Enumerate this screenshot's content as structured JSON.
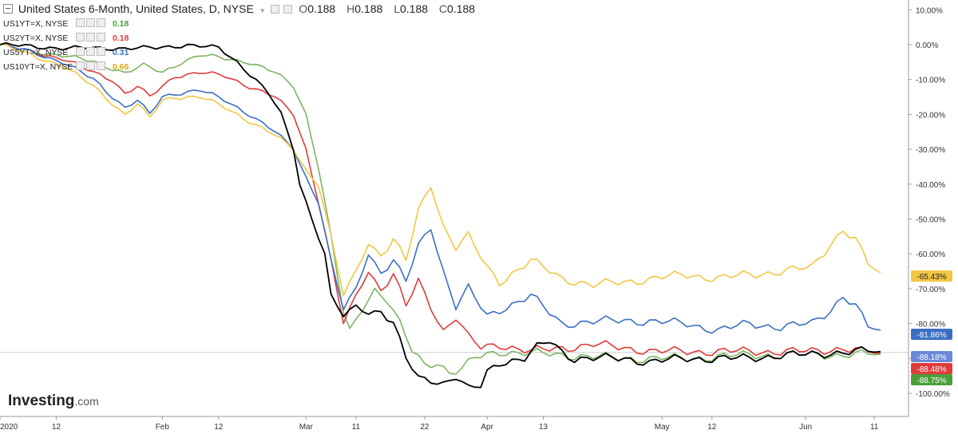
{
  "header": {
    "title": "United States 6-Month, United States, D, NYSE",
    "o_label": "O",
    "o_value": "0.188",
    "h_label": "H",
    "h_value": "0.188",
    "l_label": "L",
    "l_value": "0.188",
    "c_label": "C",
    "c_value": "0.188"
  },
  "logo": {
    "brand": "Investing",
    "suffix": ".com"
  },
  "chart_data": {
    "type": "line",
    "y_unit": "%",
    "ylim": [
      -104,
      12
    ],
    "y_ticks": [
      "10.00%",
      "0.00%",
      "-10.00%",
      "-20.00%",
      "-30.00%",
      "-40.00%",
      "-50.00%",
      "-60.00%",
      "-70.00%",
      "-80.00%",
      "-90.00%",
      "-100.00%"
    ],
    "y_tick_values": [
      10,
      0,
      -10,
      -20,
      -30,
      -40,
      -50,
      -60,
      -70,
      -80,
      -90,
      -100
    ],
    "x_labels": [
      "2020",
      "12",
      "Feb",
      "12",
      "Mar",
      "11",
      "22",
      "Apr",
      "13",
      "May",
      "12",
      "Jun",
      "11"
    ],
    "x_label_positions": [
      0,
      9,
      26,
      35,
      49,
      57,
      68,
      78,
      87,
      106,
      114,
      129,
      140
    ],
    "n_points": 142,
    "last_price_labels": [
      {
        "text": "-65.43%",
        "value": -65.43,
        "color": "#f2c744"
      },
      {
        "text": "-81.86%",
        "value": -81.86,
        "color": "#3b6fc4"
      },
      {
        "text": "-88.18%",
        "value": -88.18,
        "color": "#6a8ad8"
      },
      {
        "text": "-88.48%",
        "value": -88.48,
        "color": "#e03b3b"
      },
      {
        "text": "-88.75%",
        "value": -88.75,
        "color": "#4a9e3a"
      }
    ],
    "series": [
      {
        "name": "US1YT=X, NYSE",
        "value_label": "0.18",
        "color": "#7db563",
        "keys": [
          [
            0,
            0
          ],
          [
            5,
            -2
          ],
          [
            10,
            -3
          ],
          [
            15,
            -5
          ],
          [
            20,
            -8
          ],
          [
            23,
            -6
          ],
          [
            26,
            -8
          ],
          [
            29,
            -5
          ],
          [
            32,
            -3
          ],
          [
            36,
            -4
          ],
          [
            40,
            -5
          ],
          [
            44,
            -8
          ],
          [
            47,
            -12
          ],
          [
            49,
            -20
          ],
          [
            51,
            -35
          ],
          [
            53,
            -55
          ],
          [
            55,
            -77
          ],
          [
            56,
            -82
          ],
          [
            58,
            -76
          ],
          [
            60,
            -70
          ],
          [
            62,
            -73
          ],
          [
            64,
            -80
          ],
          [
            66,
            -88
          ],
          [
            68,
            -92
          ],
          [
            70,
            -91
          ],
          [
            72,
            -94
          ],
          [
            74,
            -93
          ],
          [
            76,
            -90
          ],
          [
            80,
            -88
          ],
          [
            90,
            -89
          ],
          [
            100,
            -90
          ],
          [
            110,
            -90
          ],
          [
            120,
            -89
          ],
          [
            130,
            -89
          ],
          [
            141,
            -88.75
          ]
        ]
      },
      {
        "name": "US2YT=X, NYSE",
        "value_label": "0.18",
        "color": "#e03b3b",
        "keys": [
          [
            0,
            0
          ],
          [
            5,
            -2
          ],
          [
            10,
            -4
          ],
          [
            15,
            -8
          ],
          [
            18,
            -10
          ],
          [
            20,
            -14
          ],
          [
            22,
            -12
          ],
          [
            24,
            -15
          ],
          [
            26,
            -12
          ],
          [
            28,
            -9
          ],
          [
            32,
            -8
          ],
          [
            36,
            -9
          ],
          [
            40,
            -12
          ],
          [
            44,
            -15
          ],
          [
            47,
            -20
          ],
          [
            49,
            -30
          ],
          [
            51,
            -45
          ],
          [
            53,
            -62
          ],
          [
            55,
            -80
          ],
          [
            57,
            -72
          ],
          [
            59,
            -65
          ],
          [
            61,
            -70
          ],
          [
            63,
            -66
          ],
          [
            65,
            -75
          ],
          [
            67,
            -68
          ],
          [
            69,
            -75
          ],
          [
            71,
            -82
          ],
          [
            73,
            -78
          ],
          [
            75,
            -84
          ],
          [
            77,
            -87
          ],
          [
            80,
            -86
          ],
          [
            85,
            -88
          ],
          [
            90,
            -87
          ],
          [
            95,
            -86
          ],
          [
            100,
            -87
          ],
          [
            105,
            -88
          ],
          [
            110,
            -88
          ],
          [
            120,
            -88
          ],
          [
            130,
            -88
          ],
          [
            135,
            -87
          ],
          [
            138,
            -88
          ],
          [
            141,
            -88.48
          ]
        ]
      },
      {
        "name": "US5YT=X, NYSE",
        "value_label": "0.31",
        "color": "#3b6fc4",
        "keys": [
          [
            0,
            0
          ],
          [
            5,
            -2
          ],
          [
            10,
            -5
          ],
          [
            15,
            -10
          ],
          [
            20,
            -18
          ],
          [
            22,
            -16
          ],
          [
            24,
            -20
          ],
          [
            26,
            -15
          ],
          [
            28,
            -14
          ],
          [
            32,
            -13
          ],
          [
            36,
            -16
          ],
          [
            40,
            -20
          ],
          [
            44,
            -25
          ],
          [
            47,
            -30
          ],
          [
            49,
            -38
          ],
          [
            51,
            -45
          ],
          [
            53,
            -62
          ],
          [
            55,
            -76
          ],
          [
            57,
            -70
          ],
          [
            59,
            -60
          ],
          [
            61,
            -65
          ],
          [
            63,
            -62
          ],
          [
            65,
            -68
          ],
          [
            67,
            -58
          ],
          [
            69,
            -52
          ],
          [
            71,
            -65
          ],
          [
            73,
            -75
          ],
          [
            75,
            -70
          ],
          [
            78,
            -78
          ],
          [
            80,
            -76
          ],
          [
            85,
            -72
          ],
          [
            88,
            -77
          ],
          [
            90,
            -80
          ],
          [
            100,
            -79
          ],
          [
            110,
            -80
          ],
          [
            115,
            -82
          ],
          [
            120,
            -80
          ],
          [
            125,
            -81
          ],
          [
            130,
            -80
          ],
          [
            133,
            -76
          ],
          [
            135,
            -72
          ],
          [
            137,
            -75
          ],
          [
            139,
            -81
          ],
          [
            141,
            -81.86
          ]
        ]
      },
      {
        "name": "US10YT=X, NYSE",
        "value_label": "0.66",
        "color": "#f2c744",
        "keys": [
          [
            0,
            0
          ],
          [
            5,
            -3
          ],
          [
            10,
            -6
          ],
          [
            15,
            -12
          ],
          [
            20,
            -20
          ],
          [
            22,
            -17
          ],
          [
            24,
            -21
          ],
          [
            26,
            -16
          ],
          [
            28,
            -15
          ],
          [
            32,
            -15
          ],
          [
            36,
            -18
          ],
          [
            40,
            -22
          ],
          [
            44,
            -26
          ],
          [
            47,
            -30
          ],
          [
            49,
            -36
          ],
          [
            51,
            -40
          ],
          [
            53,
            -55
          ],
          [
            55,
            -72
          ],
          [
            57,
            -65
          ],
          [
            59,
            -57
          ],
          [
            61,
            -60
          ],
          [
            63,
            -56
          ],
          [
            65,
            -62
          ],
          [
            67,
            -48
          ],
          [
            69,
            -40
          ],
          [
            71,
            -52
          ],
          [
            73,
            -58
          ],
          [
            75,
            -55
          ],
          [
            78,
            -64
          ],
          [
            80,
            -68
          ],
          [
            85,
            -62
          ],
          [
            90,
            -67
          ],
          [
            95,
            -69
          ],
          [
            100,
            -68
          ],
          [
            105,
            -67
          ],
          [
            110,
            -66
          ],
          [
            115,
            -67
          ],
          [
            120,
            -66
          ],
          [
            125,
            -65
          ],
          [
            130,
            -64
          ],
          [
            133,
            -57
          ],
          [
            135,
            -53
          ],
          [
            137,
            -56
          ],
          [
            139,
            -63
          ],
          [
            141,
            -65.43
          ]
        ]
      },
      {
        "name": "United States 6-Month",
        "value_label": "0.188",
        "color": "#000000",
        "keys": [
          [
            0,
            0
          ],
          [
            10,
            -1
          ],
          [
            20,
            -1
          ],
          [
            25,
            -1
          ],
          [
            30,
            0
          ],
          [
            35,
            -1
          ],
          [
            38,
            -5
          ],
          [
            41,
            -10
          ],
          [
            43,
            -14
          ],
          [
            45,
            -20
          ],
          [
            47,
            -30
          ],
          [
            48,
            -40
          ],
          [
            50,
            -50
          ],
          [
            52,
            -60
          ],
          [
            53,
            -72
          ],
          [
            55,
            -78
          ],
          [
            57,
            -75
          ],
          [
            59,
            -77
          ],
          [
            61,
            -76
          ],
          [
            63,
            -80
          ],
          [
            65,
            -90
          ],
          [
            67,
            -96
          ],
          [
            69,
            -96
          ],
          [
            71,
            -97
          ],
          [
            73,
            -95
          ],
          [
            75,
            -99
          ],
          [
            77,
            -98
          ],
          [
            78,
            -94
          ],
          [
            80,
            -91
          ],
          [
            84,
            -90
          ],
          [
            86,
            -87
          ],
          [
            88,
            -85
          ],
          [
            90,
            -88
          ],
          [
            92,
            -90
          ],
          [
            96,
            -90
          ],
          [
            100,
            -90
          ],
          [
            104,
            -91
          ],
          [
            110,
            -90
          ],
          [
            120,
            -90
          ],
          [
            125,
            -89
          ],
          [
            130,
            -89
          ],
          [
            135,
            -88
          ],
          [
            141,
            -88
          ]
        ]
      }
    ]
  }
}
